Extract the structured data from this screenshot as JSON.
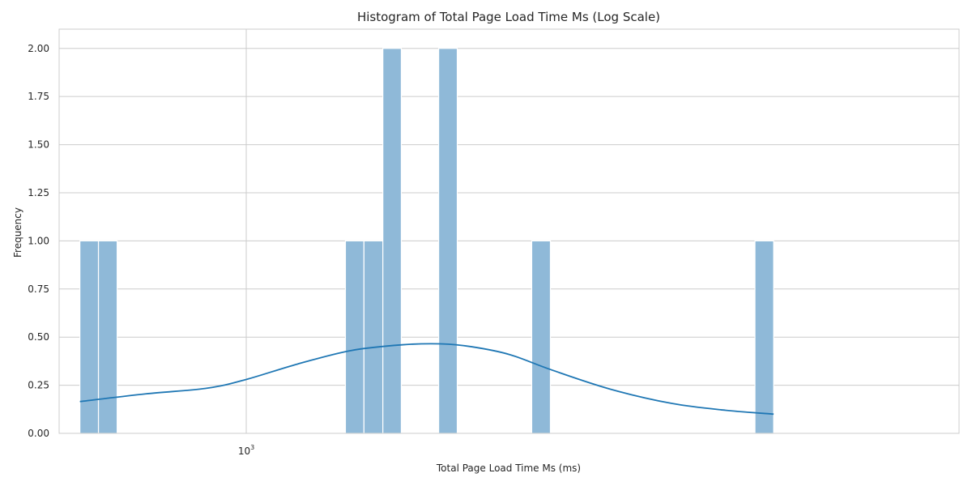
{
  "colors": {
    "bar": "#8fb9d8",
    "kde": "#1f77b4",
    "grid": "#cccccc"
  },
  "chart_data": {
    "type": "bar",
    "title": "Histogram of Total Page Load Time Ms (Log Scale)",
    "xlabel": "Total Page Load Time Ms (ms)",
    "ylabel": "Frequency",
    "x_scale": "log",
    "xlim": [
      600,
      7000
    ],
    "ylim": [
      0,
      2.1
    ],
    "grid": true,
    "x_ticks": [
      {
        "value": 1000,
        "base": "10",
        "exponent": "3"
      }
    ],
    "y_ticks": [
      {
        "value": 0,
        "label": "0.00"
      },
      {
        "value": 0.25,
        "label": "0.25"
      },
      {
        "value": 0.5,
        "label": "0.50"
      },
      {
        "value": 0.75,
        "label": "0.75"
      },
      {
        "value": 1.0,
        "label": "1.00"
      },
      {
        "value": 1.25,
        "label": "1.25"
      },
      {
        "value": 1.5,
        "label": "1.50"
      },
      {
        "value": 1.75,
        "label": "1.75"
      },
      {
        "value": 2.0,
        "label": "2.00"
      }
    ],
    "bins": [
      {
        "start": 635,
        "end": 668,
        "count": 1
      },
      {
        "start": 668,
        "end": 703,
        "count": 1
      },
      {
        "start": 1311,
        "end": 1379,
        "count": 1
      },
      {
        "start": 1379,
        "end": 1452,
        "count": 1
      },
      {
        "start": 1452,
        "end": 1527,
        "count": 2
      },
      {
        "start": 1691,
        "end": 1779,
        "count": 2
      },
      {
        "start": 2180,
        "end": 2294,
        "count": 1
      },
      {
        "start": 4010,
        "end": 4220,
        "count": 1
      }
    ],
    "kde": {
      "x": [
        635,
        760,
        900,
        1000,
        1150,
        1330,
        1530,
        1700,
        1850,
        2050,
        2300,
        2700,
        3200,
        3700,
        4220
      ],
      "y": [
        0.165,
        0.205,
        0.235,
        0.28,
        0.36,
        0.43,
        0.46,
        0.465,
        0.45,
        0.41,
        0.33,
        0.23,
        0.155,
        0.12,
        0.1
      ]
    }
  }
}
